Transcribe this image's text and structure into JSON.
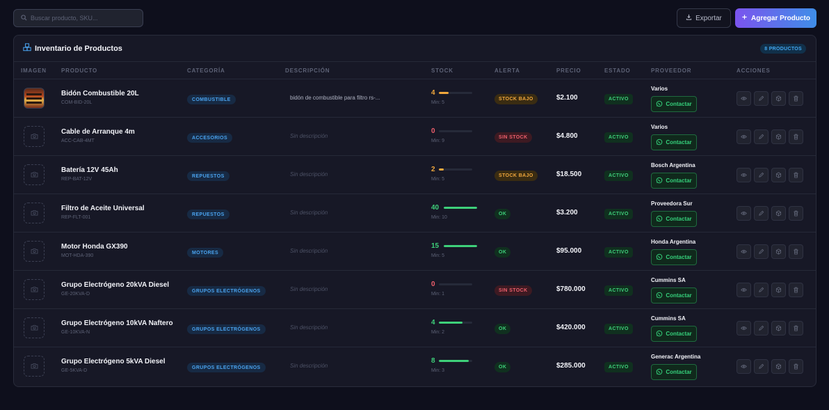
{
  "search": {
    "placeholder": "Buscar producto, SKU..."
  },
  "toolbar": {
    "export_label": "Exportar",
    "add_label": "Agregar Producto"
  },
  "inventory": {
    "title": "Inventario de Productos",
    "count_badge": "8 PRODUCTOS",
    "columns": [
      "IMAGEN",
      "PRODUCTO",
      "CATEGORÍA",
      "DESCRIPCIÓN",
      "STOCK",
      "ALERTA",
      "PRECIO",
      "ESTADO",
      "PROVEEDOR",
      "ACCIONES"
    ],
    "contact_label": "Contactar",
    "rows": [
      {
        "image": "photo",
        "name": "Bidón Combustible 20L",
        "sku": "COM-BID-20L",
        "category": "COMBUSTIBLE",
        "description": "bidón de combustible para filtro rs-...",
        "has_description": true,
        "stock": "4",
        "stock_level": 0.3,
        "stock_color": "#f0a73c",
        "min": "Min: 5",
        "alert": "STOCK BAJO",
        "alert_type": "low",
        "price": "$2.100",
        "status": "ACTIVO",
        "supplier": "Varios"
      },
      {
        "image": "placeholder",
        "name": "Cable de Arranque 4m",
        "sku": "ACC-CAB-4MT",
        "category": "ACCESORIOS",
        "description": "Sin descripción",
        "has_description": false,
        "stock": "0",
        "stock_level": 0,
        "stock_color": "#ef5f6c",
        "min": "Min: 9",
        "alert": "SIN STOCK",
        "alert_type": "none",
        "price": "$4.800",
        "status": "ACTIVO",
        "supplier": "Varios"
      },
      {
        "image": "placeholder",
        "name": "Batería 12V 45Ah",
        "sku": "REP-BAT-12V",
        "category": "REPUESTOS",
        "description": "Sin descripción",
        "has_description": false,
        "stock": "2",
        "stock_level": 0.15,
        "stock_color": "#f0a73c",
        "min": "Min: 5",
        "alert": "STOCK BAJO",
        "alert_type": "low",
        "price": "$18.500",
        "status": "ACTIVO",
        "supplier": "Bosch Argentina"
      },
      {
        "image": "placeholder",
        "name": "Filtro de Aceite Universal",
        "sku": "REP-FLT-001",
        "category": "REPUESTOS",
        "description": "Sin descripción",
        "has_description": false,
        "stock": "40",
        "stock_level": 1.0,
        "stock_color": "#3ed07a",
        "min": "Min: 10",
        "alert": "OK",
        "alert_type": "ok",
        "price": "$3.200",
        "status": "ACTIVO",
        "supplier": "Proveedora Sur"
      },
      {
        "image": "placeholder",
        "name": "Motor Honda GX390",
        "sku": "MOT-HDA-390",
        "category": "MOTORES",
        "description": "Sin descripción",
        "has_description": false,
        "stock": "15",
        "stock_level": 1.0,
        "stock_color": "#3ed07a",
        "min": "Min: 5",
        "alert": "OK",
        "alert_type": "ok",
        "price": "$95.000",
        "status": "ACTIVO",
        "supplier": "Honda Argentina"
      },
      {
        "image": "placeholder",
        "name": "Grupo Electrógeno 20kVA Diesel",
        "sku": "GE-20KVA-D",
        "category": "GRUPOS ELECTRÓGENOS",
        "description": "Sin descripción",
        "has_description": false,
        "stock": "0",
        "stock_level": 0,
        "stock_color": "#ef5f6c",
        "min": "Min: 1",
        "alert": "SIN STOCK",
        "alert_type": "none",
        "price": "$780.000",
        "status": "ACTIVO",
        "supplier": "Cummins SA"
      },
      {
        "image": "placeholder",
        "name": "Grupo Electrógeno 10kVA Naftero",
        "sku": "GE-10KVA-N",
        "category": "GRUPOS ELECTRÓGENOS",
        "description": "Sin descripción",
        "has_description": false,
        "stock": "4",
        "stock_level": 0.7,
        "stock_color": "#3ed07a",
        "min": "Min: 2",
        "alert": "OK",
        "alert_type": "ok",
        "price": "$420.000",
        "status": "ACTIVO",
        "supplier": "Cummins SA"
      },
      {
        "image": "placeholder",
        "name": "Grupo Electrógeno 5kVA Diesel",
        "sku": "GE-5KVA-D",
        "category": "GRUPOS ELECTRÓGENOS",
        "description": "Sin descripción",
        "has_description": false,
        "stock": "8",
        "stock_level": 0.9,
        "stock_color": "#3ed07a",
        "min": "Min: 3",
        "alert": "OK",
        "alert_type": "ok",
        "price": "$285.000",
        "status": "ACTIVO",
        "supplier": "Generac Argentina"
      }
    ]
  },
  "icons": {
    "search": "search-icon",
    "export": "download-icon",
    "add": "plus-icon",
    "title": "boxes-icon",
    "contact": "whatsapp-icon",
    "actions": [
      "eye-icon",
      "pencil-icon",
      "box-icon",
      "trash-icon"
    ]
  },
  "colors": {
    "accent_purple": "#7b54ee",
    "accent_blue": "#3f8ee8",
    "ok_green": "#3ed07a",
    "low_orange": "#f0a73c",
    "none_red": "#ef5f6c"
  }
}
